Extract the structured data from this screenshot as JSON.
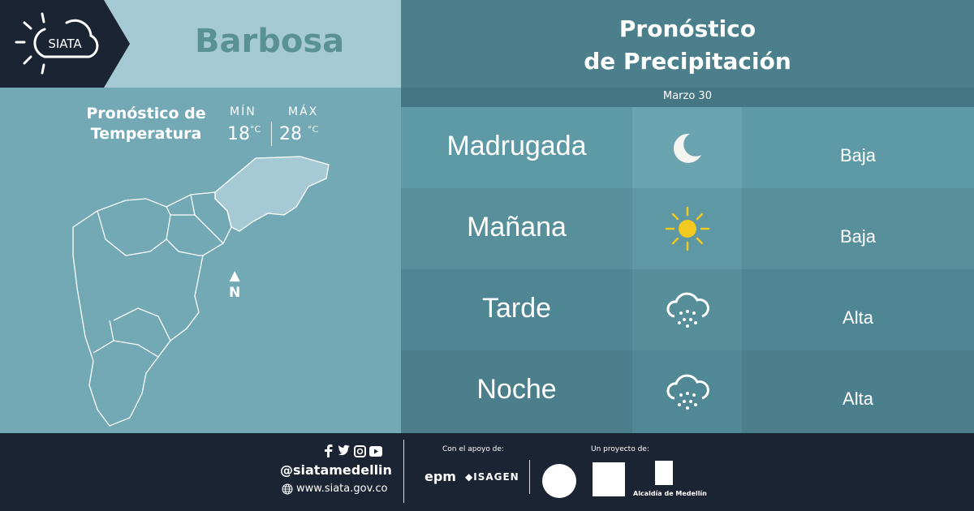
{
  "header": {
    "logo_text": "SIATA",
    "city": "Barbosa"
  },
  "temperature": {
    "title_line1": "Pronóstico de",
    "title_line2": "Temperatura",
    "min_label": "MÍN",
    "max_label": "MÁX",
    "min_value": "18",
    "max_value": "28",
    "unit": "°C"
  },
  "map": {
    "north_label": "N"
  },
  "precipitation": {
    "title_line1": "Pronóstico",
    "title_line2": "de Precipitación",
    "date": "Marzo 30",
    "rows": [
      {
        "period": "Madrugada",
        "icon": "moon-icon",
        "level": "Baja"
      },
      {
        "period": "Mañana",
        "icon": "sun-icon",
        "level": "Baja"
      },
      {
        "period": "Tarde",
        "icon": "rain-cloud-icon",
        "level": "Alta"
      },
      {
        "period": "Noche",
        "icon": "rain-cloud-icon",
        "level": "Alta"
      }
    ]
  },
  "footer": {
    "handle": "@siatamedellin",
    "website": "www.siata.gov.co",
    "support_label": "Con el apoyo de:",
    "sponsor1": "epm",
    "sponsor2": "ISAGEN",
    "project_label": "Un proyecto de:",
    "partner3": "Alcaldía de Medellín"
  },
  "colors": {
    "dark": "#1b2432",
    "light_band": "#a6cad5",
    "city_text": "#5a9198",
    "sun": "#f2c91e"
  }
}
